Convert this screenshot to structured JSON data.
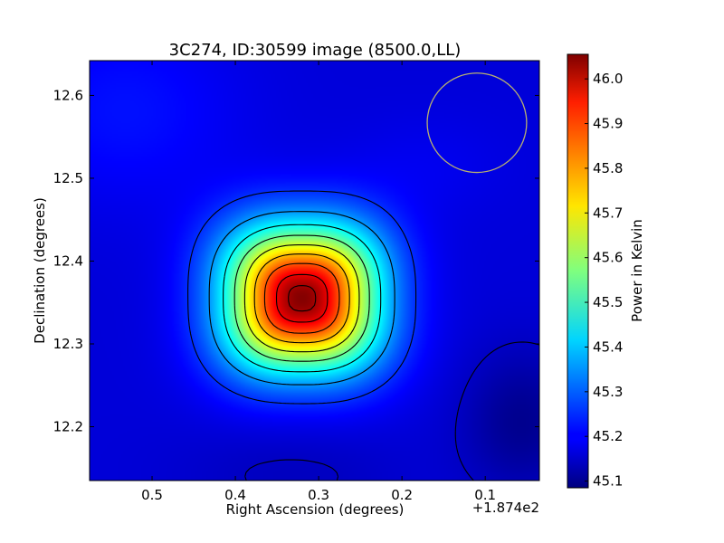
{
  "chart_data": {
    "type": "heatmap",
    "title": "3C274, ID:30599 image (8500.0,LL)",
    "xlabel": "Right Ascension (degrees)",
    "ylabel": "Declination (degrees)",
    "x_offset_label": "+1.874e2",
    "xlim": [
      0.575,
      0.035
    ],
    "ylim": [
      12.135,
      12.642
    ],
    "x_ticks": [
      {
        "value": 0.5,
        "label": "0.5"
      },
      {
        "value": 0.4,
        "label": "0.4"
      },
      {
        "value": 0.3,
        "label": "0.3"
      },
      {
        "value": 0.2,
        "label": "0.2"
      },
      {
        "value": 0.1,
        "label": "0.1"
      }
    ],
    "y_ticks": [
      {
        "value": 12.2,
        "label": "12.2"
      },
      {
        "value": 12.3,
        "label": "12.3"
      },
      {
        "value": 12.4,
        "label": "12.4"
      },
      {
        "value": 12.5,
        "label": "12.5"
      },
      {
        "value": 12.6,
        "label": "12.6"
      }
    ],
    "colorbar": {
      "label": "Power in Kelvin",
      "range": [
        45.085,
        46.055
      ],
      "ticks": [
        {
          "value": 45.1,
          "label": "45.1"
        },
        {
          "value": 45.2,
          "label": "45.2"
        },
        {
          "value": 45.3,
          "label": "45.3"
        },
        {
          "value": 45.4,
          "label": "45.4"
        },
        {
          "value": 45.5,
          "label": "45.5"
        },
        {
          "value": 45.6,
          "label": "45.6"
        },
        {
          "value": 45.7,
          "label": "45.7"
        },
        {
          "value": 45.8,
          "label": "45.8"
        },
        {
          "value": 45.9,
          "label": "45.9"
        },
        {
          "value": 46.0,
          "label": "46.0"
        }
      ]
    },
    "source": {
      "ra": 0.32,
      "dec": 12.355,
      "peak": 46.05,
      "background": 45.17
    },
    "contour_levels": [
      45.15,
      45.25,
      45.35,
      45.45,
      45.55,
      45.65,
      45.75,
      45.85,
      45.95,
      46.02
    ],
    "beam": {
      "ra": 0.11,
      "dec": 12.567,
      "radius_deg": 0.06,
      "color": "#b8b070"
    },
    "colormap": "jet"
  }
}
